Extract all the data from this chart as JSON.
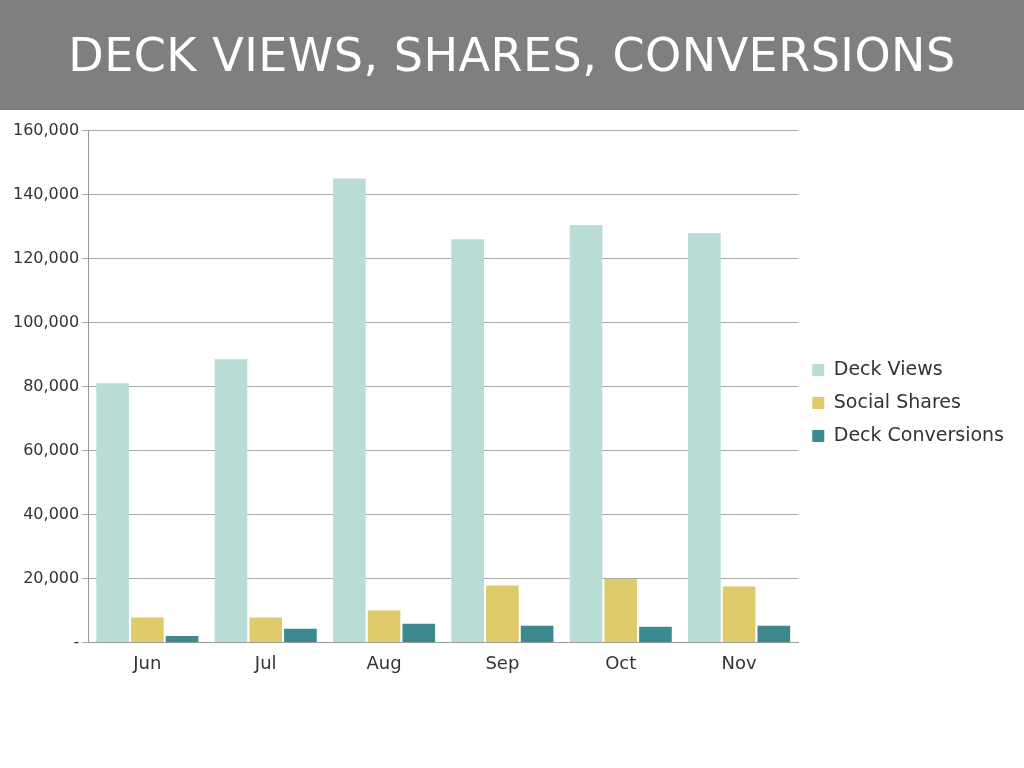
{
  "chart_data": {
    "type": "bar",
    "title": "DECK VIEWS, SHARES, CONVERSIONS",
    "categories": [
      "Jun",
      "Jul",
      "Aug",
      "Sep",
      "Oct",
      "Nov"
    ],
    "series": [
      {
        "name": "Deck Views",
        "color": "#b9dcd7",
        "values": [
          81000,
          88500,
          145000,
          126000,
          130500,
          128000
        ]
      },
      {
        "name": "Social Shares",
        "color": "#e0cb6b",
        "values": [
          7800,
          7800,
          10000,
          17800,
          19800,
          17500
        ]
      },
      {
        "name": "Deck Conversions",
        "color": "#3c8a8f",
        "values": [
          2000,
          4300,
          5800,
          5200,
          4900,
          5200
        ]
      }
    ],
    "ylim": [
      0,
      160000
    ],
    "yticks": [
      {
        "value": 0,
        "label": "-"
      },
      {
        "value": 20000,
        "label": "20,000"
      },
      {
        "value": 40000,
        "label": "40,000"
      },
      {
        "value": 60000,
        "label": "60,000"
      },
      {
        "value": 80000,
        "label": "80,000"
      },
      {
        "value": 100000,
        "label": "100,000"
      },
      {
        "value": 120000,
        "label": "120,000"
      },
      {
        "value": 140000,
        "label": "140,000"
      },
      {
        "value": 160000,
        "label": "160,000"
      }
    ],
    "grid": "y",
    "legend": "right"
  }
}
